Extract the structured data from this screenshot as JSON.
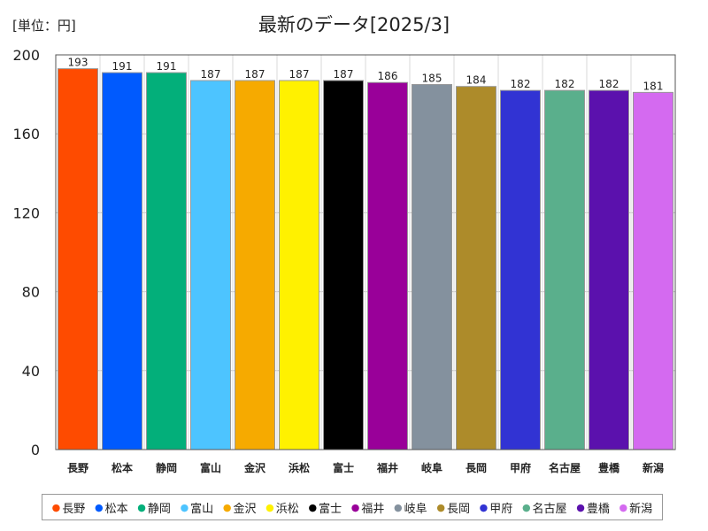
{
  "chart_data": {
    "type": "bar",
    "title": "最新のデータ[2025/3]",
    "unit_label": "[単位：円]",
    "categories": [
      "長野",
      "松本",
      "静岡",
      "富山",
      "金沢",
      "浜松",
      "富士",
      "福井",
      "岐阜",
      "長岡",
      "甲府",
      "名古屋",
      "豊橋",
      "新潟"
    ],
    "values": [
      193,
      191,
      191,
      187,
      187,
      187,
      187,
      186,
      185,
      184,
      182,
      182,
      182,
      181
    ],
    "value_labels": [
      "193",
      "191",
      "191",
      "187",
      "187",
      "187",
      "187",
      "186",
      "185",
      "184",
      "182",
      "182",
      "182",
      "181"
    ],
    "colors": [
      "#fe4b00",
      "#005afe",
      "#03af7a",
      "#4dc4ff",
      "#f6aa00",
      "#fff100",
      "#000000",
      "#990099",
      "#84919e",
      "#ad8b2a",
      "#3133d3",
      "#5aaf8c",
      "#5b11ad",
      "#d46af0"
    ],
    "yticks": [
      0,
      40,
      80,
      120,
      160,
      200
    ],
    "ytick_labels": [
      "0",
      "40",
      "80",
      "120",
      "160",
      "200"
    ],
    "ylim": [
      0,
      200
    ],
    "grid": true,
    "legend_position": "bottom",
    "legend_marker": "●"
  }
}
